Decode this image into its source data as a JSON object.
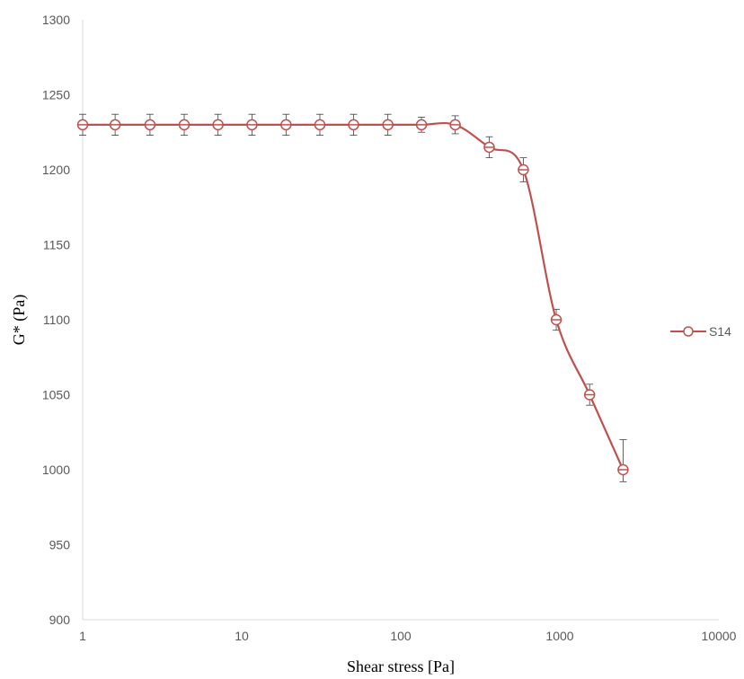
{
  "chart_data": {
    "type": "line",
    "title": "",
    "xlabel": "Shear stress [Pa]",
    "ylabel": "G* (Pa)",
    "x_scale": "log",
    "xlim": [
      1,
      10000
    ],
    "ylim": [
      900,
      1300
    ],
    "x_ticks": [
      1,
      10,
      100,
      1000,
      10000
    ],
    "x_tick_labels": [
      "1",
      "10",
      "100",
      "1000",
      "10000"
    ],
    "y_ticks": [
      900,
      950,
      1000,
      1050,
      1100,
      1150,
      1200,
      1250,
      1300
    ],
    "y_tick_labels": [
      "900",
      "950",
      "1000",
      "1050",
      "1100",
      "1150",
      "1200",
      "1250",
      "1300"
    ],
    "grid": false,
    "legend_position": "right",
    "series": [
      {
        "name": "S14",
        "color": "#c0504d",
        "marker": "open-circle",
        "smooth": true,
        "x": [
          1.0,
          1.6,
          2.65,
          4.35,
          7.1,
          11.6,
          19.0,
          31.0,
          50.5,
          83.0,
          135,
          220,
          360,
          590,
          950,
          1540,
          2500
        ],
        "y": [
          1230,
          1230,
          1230,
          1230,
          1230,
          1230,
          1230,
          1230,
          1230,
          1230,
          1230,
          1230,
          1215,
          1200,
          1100,
          1050,
          1000
        ],
        "error": [
          7,
          7,
          7,
          7,
          7,
          7,
          7,
          7,
          7,
          7,
          5,
          6,
          7,
          8,
          7,
          7,
          20
        ],
        "error_lower": [
          7,
          7,
          7,
          7,
          7,
          7,
          7,
          7,
          7,
          7,
          5,
          6,
          7,
          8,
          7,
          7,
          8
        ]
      }
    ]
  }
}
